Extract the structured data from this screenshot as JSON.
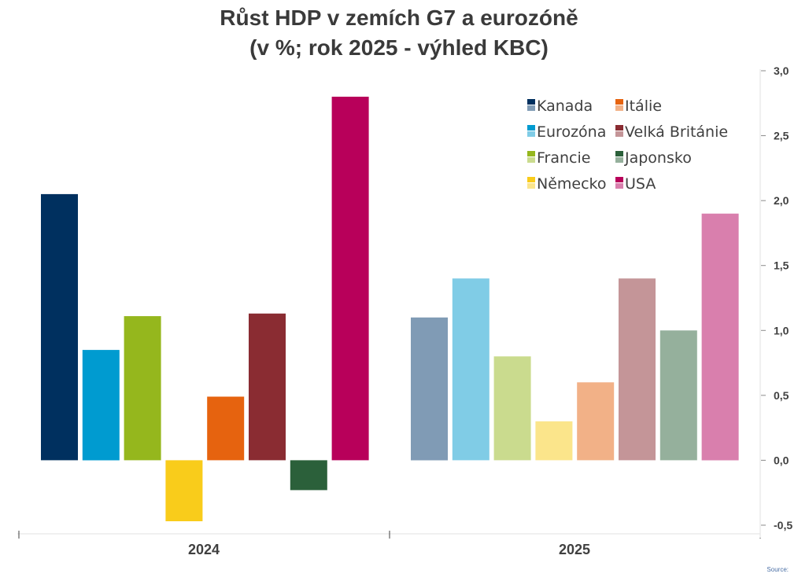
{
  "chart_data": {
    "type": "bar",
    "title": "Růst HDP v zemích G7 a eurozóně",
    "subtitle": "(v %; rok 2025 - výhled KBC)",
    "categories": [
      "2024",
      "2025"
    ],
    "series": [
      {
        "name": "Kanada",
        "values": [
          2.05,
          1.1
        ],
        "colors": [
          "#00305f",
          "#809bb5"
        ]
      },
      {
        "name": "Eurozóna",
        "values": [
          0.85,
          1.4
        ],
        "colors": [
          "#009bd0",
          "#80cce6"
        ]
      },
      {
        "name": "Francie",
        "values": [
          1.11,
          0.8
        ],
        "colors": [
          "#95b71d",
          "#cadb8e"
        ]
      },
      {
        "name": "Německo",
        "values": [
          -0.47,
          0.3
        ],
        "colors": [
          "#f9cc1b",
          "#fbe58b"
        ]
      },
      {
        "name": "Itálie",
        "values": [
          0.49,
          0.6
        ],
        "colors": [
          "#e6630f",
          "#f2b187"
        ]
      },
      {
        "name": "Velká Británie",
        "values": [
          1.13,
          1.4
        ],
        "colors": [
          "#8a2c32",
          "#c49598"
        ]
      },
      {
        "name": "Japonsko",
        "values": [
          -0.23,
          1.0
        ],
        "colors": [
          "#2b603a",
          "#95b09c"
        ]
      },
      {
        "name": "USA",
        "values": [
          2.8,
          1.9
        ],
        "colors": [
          "#b8005a",
          "#d97fad"
        ]
      }
    ],
    "ylim": [
      -0.5,
      3.0
    ],
    "yticks": [
      "-0,5",
      "0,0",
      "0,5",
      "1,0",
      "1,5",
      "2,0",
      "2,5",
      "3,0"
    ],
    "ytick_values": [
      -0.5,
      0,
      0.5,
      1.0,
      1.5,
      2.0,
      2.5,
      3.0
    ],
    "y_axis_side": "right",
    "legend_position": "top-right",
    "legend_order": [
      "Kanada",
      "Itálie",
      "Eurozóna",
      "Velká Británie",
      "Francie",
      "Japonsko",
      "Německo",
      "USA"
    ],
    "xlabel": "",
    "ylabel": ""
  },
  "footer": {
    "source": "Source:"
  }
}
